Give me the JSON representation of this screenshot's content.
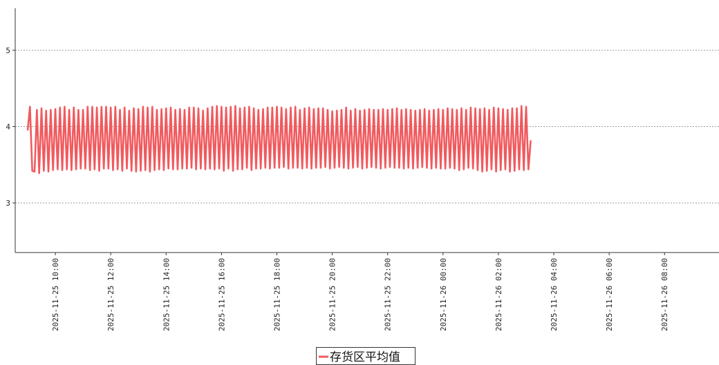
{
  "chart_data": {
    "type": "line",
    "title": "",
    "xlabel": "",
    "ylabel": "",
    "ylim": [
      2.35,
      5.55
    ],
    "y_ticks": [
      3,
      4,
      5
    ],
    "y_tick_labels": [
      "3",
      "4",
      "5"
    ],
    "x_range": [
      "2025-11-25 09:00",
      "2025-11-26 09:40"
    ],
    "x_ticks": [
      "2025-11-25 10:00",
      "2025-11-25 12:00",
      "2025-11-25 14:00",
      "2025-11-25 16:00",
      "2025-11-25 18:00",
      "2025-11-25 20:00",
      "2025-11-25 22:00",
      "2025-11-26 00:00",
      "2025-11-26 02:00",
      "2025-11-26 04:00",
      "2025-11-26 06:00",
      "2025-11-26 08:00"
    ],
    "grid": {
      "y": true,
      "x": false
    },
    "legend_position": "bottom-center",
    "series": [
      {
        "name": "存货区平均值",
        "color": "#f05a5e",
        "sampling_interval_minutes": 5,
        "start": "2025-11-25 09:00",
        "values": [
          3.95,
          4.26,
          3.42,
          3.41,
          4.22,
          3.39,
          4.24,
          3.42,
          4.21,
          3.41,
          4.22,
          3.43,
          4.23,
          3.44,
          4.25,
          3.43,
          4.26,
          3.44,
          4.22,
          3.43,
          4.25,
          3.44,
          4.22,
          3.45,
          4.22,
          3.45,
          4.26,
          3.43,
          4.26,
          3.44,
          4.25,
          3.42,
          4.26,
          3.45,
          4.26,
          3.45,
          4.25,
          3.43,
          4.26,
          3.44,
          4.22,
          3.42,
          4.25,
          3.45,
          4.21,
          3.42,
          4.24,
          3.41,
          4.23,
          3.42,
          4.26,
          3.43,
          4.25,
          3.41,
          4.26,
          3.43,
          4.22,
          3.44,
          4.23,
          3.43,
          4.24,
          3.45,
          4.25,
          3.44,
          4.22,
          3.44,
          4.23,
          3.45,
          4.22,
          3.45,
          4.25,
          3.46,
          4.25,
          3.44,
          4.24,
          3.45,
          4.21,
          3.44,
          4.24,
          3.45,
          4.26,
          3.44,
          4.27,
          3.45,
          4.26,
          3.42,
          4.25,
          3.45,
          4.26,
          3.42,
          4.27,
          3.44,
          4.24,
          3.44,
          4.25,
          3.46,
          4.26,
          3.43,
          4.24,
          3.45,
          4.22,
          3.45,
          4.23,
          3.46,
          4.25,
          3.45,
          4.25,
          3.46,
          4.26,
          3.46,
          4.25,
          3.47,
          4.23,
          3.45,
          4.25,
          3.46,
          4.26,
          3.46,
          4.22,
          3.45,
          4.24,
          3.46,
          4.25,
          3.45,
          4.23,
          3.46,
          4.24,
          3.46,
          4.24,
          3.47,
          4.22,
          3.45,
          4.2,
          3.46,
          4.21,
          3.47,
          4.22,
          3.46,
          4.25,
          3.45,
          4.21,
          3.46,
          4.23,
          3.47,
          4.21,
          3.45,
          4.22,
          3.46,
          4.23,
          3.47,
          4.22,
          3.46,
          4.22,
          3.45,
          4.23,
          3.46,
          4.22,
          3.47,
          4.23,
          3.46,
          4.24,
          3.46,
          4.22,
          3.45,
          4.23,
          3.46,
          4.22,
          3.45,
          4.21,
          3.46,
          4.22,
          3.47,
          4.23,
          3.46,
          4.21,
          3.45,
          4.22,
          3.46,
          4.23,
          3.45,
          4.22,
          3.45,
          4.24,
          3.46,
          4.23,
          3.45,
          4.22,
          3.43,
          4.24,
          3.44,
          4.22,
          3.46,
          4.25,
          3.45,
          4.24,
          3.43,
          4.23,
          3.41,
          4.24,
          3.42,
          4.22,
          3.44,
          4.25,
          3.41,
          4.24,
          3.43,
          4.23,
          3.44,
          4.22,
          3.41,
          4.24,
          3.42,
          4.24,
          3.44,
          4.27,
          3.43,
          4.26,
          3.44,
          3.82
        ]
      }
    ]
  }
}
